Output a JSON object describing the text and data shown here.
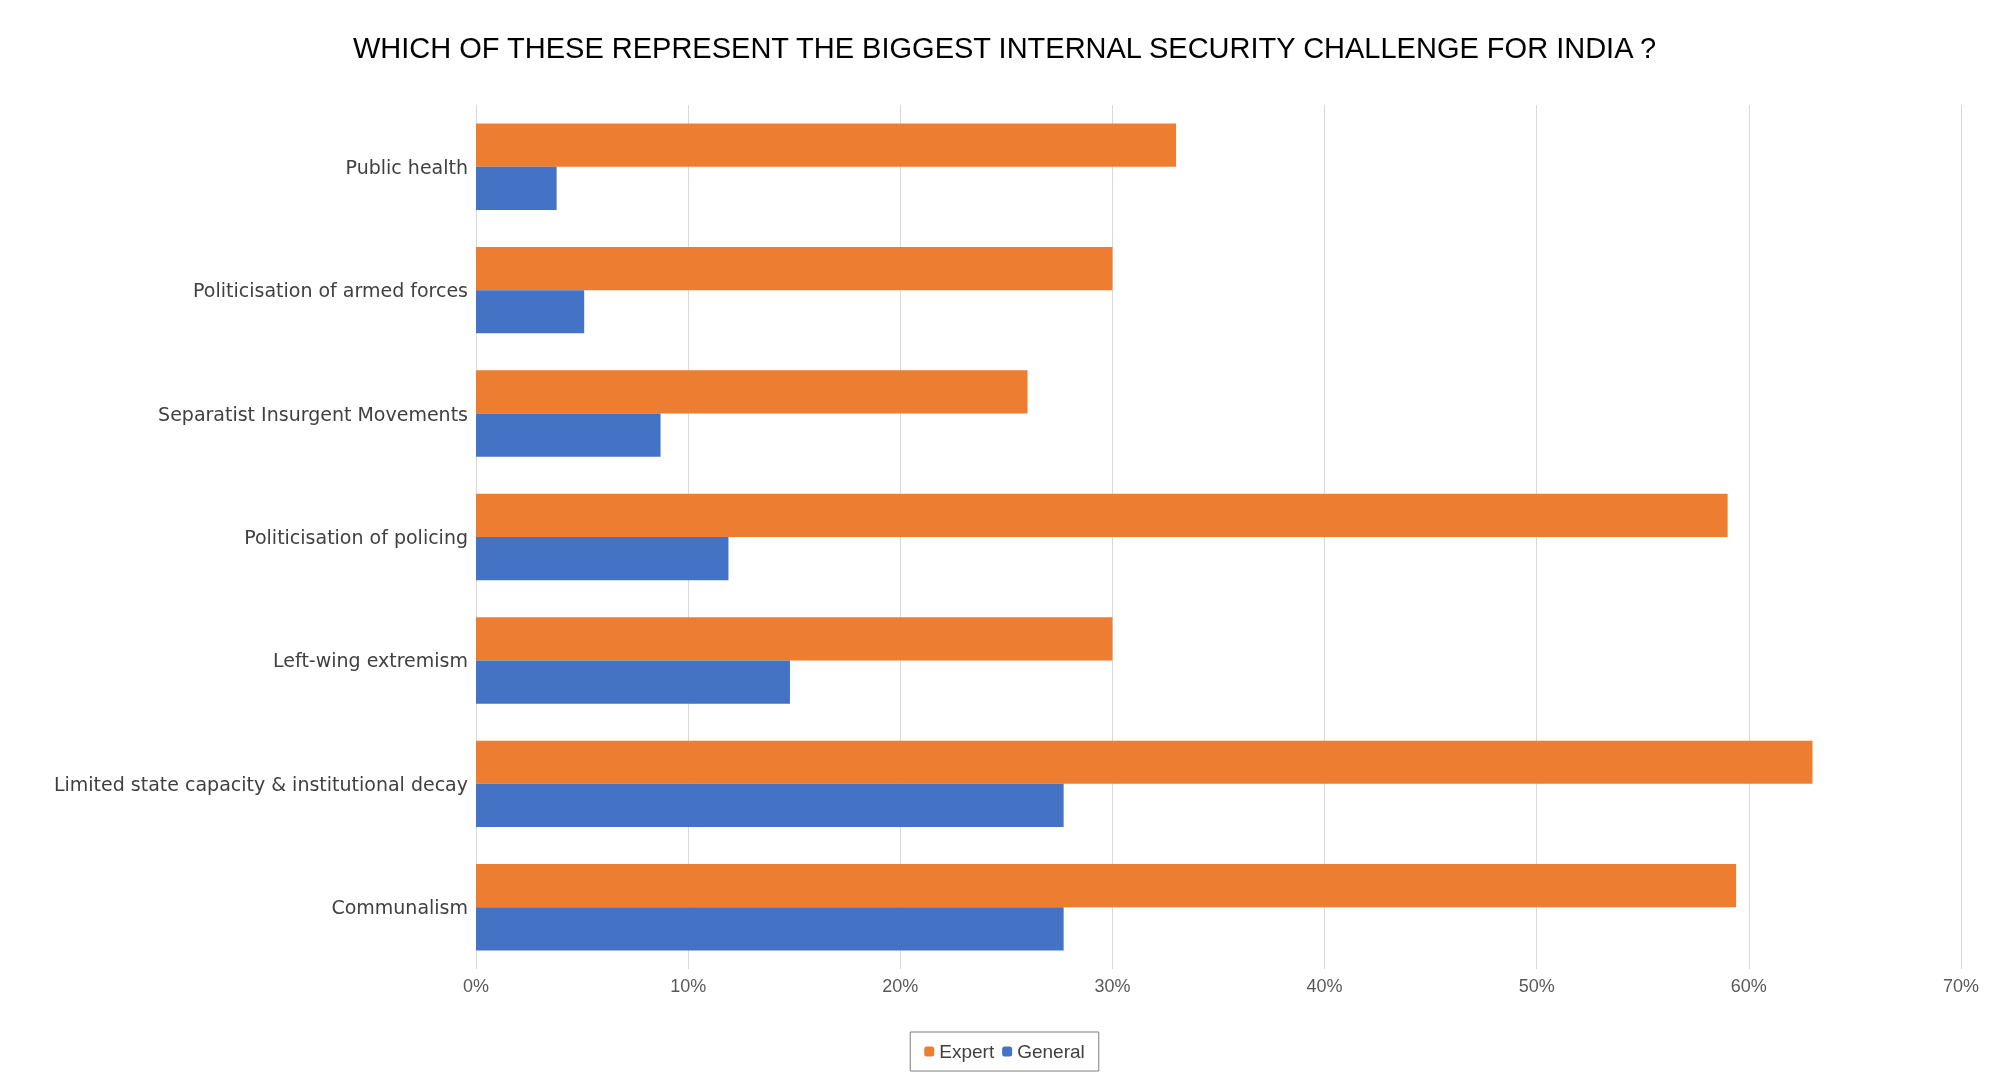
{
  "chart_data": {
    "type": "bar",
    "orientation": "horizontal",
    "title": "WHICH OF THESE REPRESENT THE BIGGEST INTERNAL SECURITY CHALLENGE FOR INDIA ?",
    "categories": [
      "Public health",
      "Politicisation of armed forces",
      "Separatist Insurgent Movements",
      "Politicisation of policing",
      "Left-wing extremism",
      "Limited state capacity & institutional decay",
      "Communalism"
    ],
    "series": [
      {
        "name": "Expert",
        "color": "#ed7d31",
        "values": [
          33,
          30,
          26,
          59,
          30,
          63,
          59.4
        ]
      },
      {
        "name": "General",
        "color": "#4472c4",
        "values": [
          3.8,
          5.1,
          8.7,
          11.9,
          14.8,
          27.7,
          27.7
        ]
      }
    ],
    "xlim": [
      0,
      70
    ],
    "xticks": [
      {
        "value": 0,
        "label": "0%"
      },
      {
        "value": 10,
        "label": "10%"
      },
      {
        "value": 20,
        "label": "20%"
      },
      {
        "value": 30,
        "label": "30%"
      },
      {
        "value": 40,
        "label": "40%"
      },
      {
        "value": 50,
        "label": "50%"
      },
      {
        "value": 60,
        "label": "60%"
      },
      {
        "value": 70,
        "label": "70%"
      }
    ],
    "grid": "x",
    "legend": "bottom"
  }
}
